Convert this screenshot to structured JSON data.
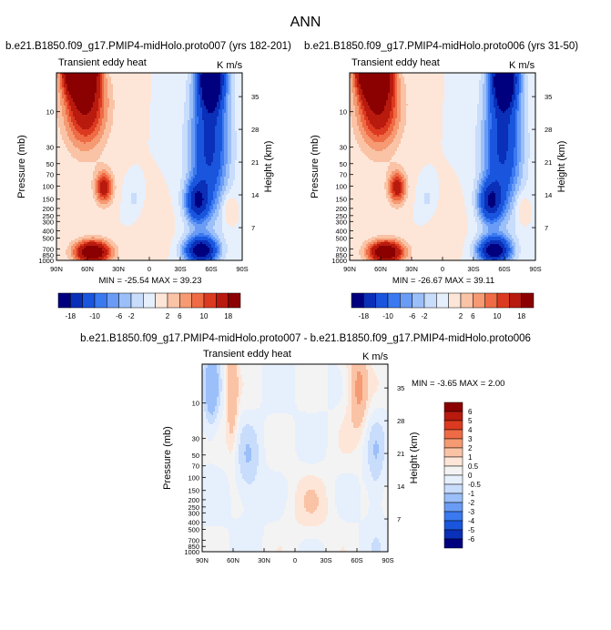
{
  "figure_title": "ANN",
  "panels": [
    {
      "title": "b.e21.B1850.f09_g17.PMIP4-midHolo.proto007 (yrs 182-201)",
      "left_label": "Transient eddy heat",
      "right_label": "K m/s",
      "minmax": "MIN = -25.54  MAX =  39.23"
    },
    {
      "title": "b.e21.B1850.f09_g17.PMIP4-midHolo.proto006 (yrs 31-50)",
      "left_label": "Transient eddy heat",
      "right_label": "K m/s",
      "minmax": "MIN = -26.67  MAX =  39.11"
    },
    {
      "title": "b.e21.B1850.f09_g17.PMIP4-midHolo.proto007 - b.e21.B1850.f09_g17.PMIP4-midHolo.proto006",
      "left_label": "Transient eddy heat",
      "right_label": "K m/s",
      "minmax": "MIN =  -3.65  MAX =   2.00"
    }
  ],
  "colorbar_main": {
    "labels": [
      "-18",
      "-10",
      "-6",
      "-2",
      "2",
      "6",
      "10",
      "18"
    ],
    "colors": [
      "#00007f",
      "#0a2fb8",
      "#1955dd",
      "#3a79f0",
      "#6a9cf5",
      "#9bbff8",
      "#c8dcfb",
      "#e6effc",
      "#fde6d8",
      "#fac3a6",
      "#f59a72",
      "#ee6b45",
      "#dc3a20",
      "#b81a0e",
      "#8b0000"
    ]
  },
  "colorbar_diff": {
    "labels": [
      "6",
      "5",
      "4",
      "3",
      "2",
      "1",
      "0.5",
      "0",
      "-0.5",
      "-1",
      "-2",
      "-3",
      "-4",
      "-5",
      "-6"
    ],
    "colors": [
      "#8b0000",
      "#b81a0e",
      "#dc3a20",
      "#ee6b45",
      "#f59a72",
      "#fac3a6",
      "#fde6d8",
      "#f3f3f3",
      "#e6effc",
      "#c8dcfb",
      "#9bbff8",
      "#6a9cf5",
      "#3a79f0",
      "#1955dd",
      "#0a2fb8",
      "#00007f"
    ]
  },
  "chart_data": [
    {
      "type": "heatmap",
      "title": "b.e21.B1850.f09_g17.PMIP4-midHolo.proto007 (yrs 182-201)",
      "variable": "Transient eddy heat",
      "units": "K m/s",
      "xlabel": "",
      "ylabel": "Pressure (mb)",
      "y2label": "Height (km)",
      "x_ticks": [
        "90N",
        "60N",
        "30N",
        "0",
        "30S",
        "60S",
        "90S"
      ],
      "y_ticks": [
        "10",
        "30",
        "50",
        "70",
        "100",
        "150",
        "200",
        "250",
        "300",
        "400",
        "500",
        "700",
        "850",
        "1000"
      ],
      "y2_ticks": [
        "35",
        "28",
        "21",
        "14",
        "7"
      ],
      "ylim": [
        1000,
        3
      ],
      "min": -25.54,
      "max": 39.23
    },
    {
      "type": "heatmap",
      "title": "b.e21.B1850.f09_g17.PMIP4-midHolo.proto006 (yrs 31-50)",
      "variable": "Transient eddy heat",
      "units": "K m/s",
      "xlabel": "",
      "ylabel": "Pressure (mb)",
      "y2label": "Height (km)",
      "x_ticks": [
        "90N",
        "60N",
        "30N",
        "0",
        "30S",
        "60S",
        "90S"
      ],
      "y_ticks": [
        "10",
        "30",
        "50",
        "70",
        "100",
        "150",
        "200",
        "250",
        "300",
        "400",
        "500",
        "700",
        "850",
        "1000"
      ],
      "y2_ticks": [
        "35",
        "28",
        "21",
        "14",
        "7"
      ],
      "ylim": [
        1000,
        3
      ],
      "min": -26.67,
      "max": 39.11
    },
    {
      "type": "heatmap",
      "title": "b.e21.B1850.f09_g17.PMIP4-midHolo.proto007 - b.e21.B1850.f09_g17.PMIP4-midHolo.proto006",
      "variable": "Transient eddy heat",
      "units": "K m/s",
      "xlabel": "",
      "ylabel": "Pressure (mb)",
      "y2label": "Height (km)",
      "x_ticks": [
        "90N",
        "60N",
        "30N",
        "0",
        "30S",
        "60S",
        "90S"
      ],
      "y_ticks": [
        "10",
        "30",
        "50",
        "70",
        "100",
        "150",
        "200",
        "250",
        "300",
        "400",
        "500",
        "700",
        "850",
        "1000"
      ],
      "y2_ticks": [
        "35",
        "28",
        "21",
        "14",
        "7"
      ],
      "ylim": [
        1000,
        3
      ],
      "min": -3.65,
      "max": 2.0
    }
  ]
}
